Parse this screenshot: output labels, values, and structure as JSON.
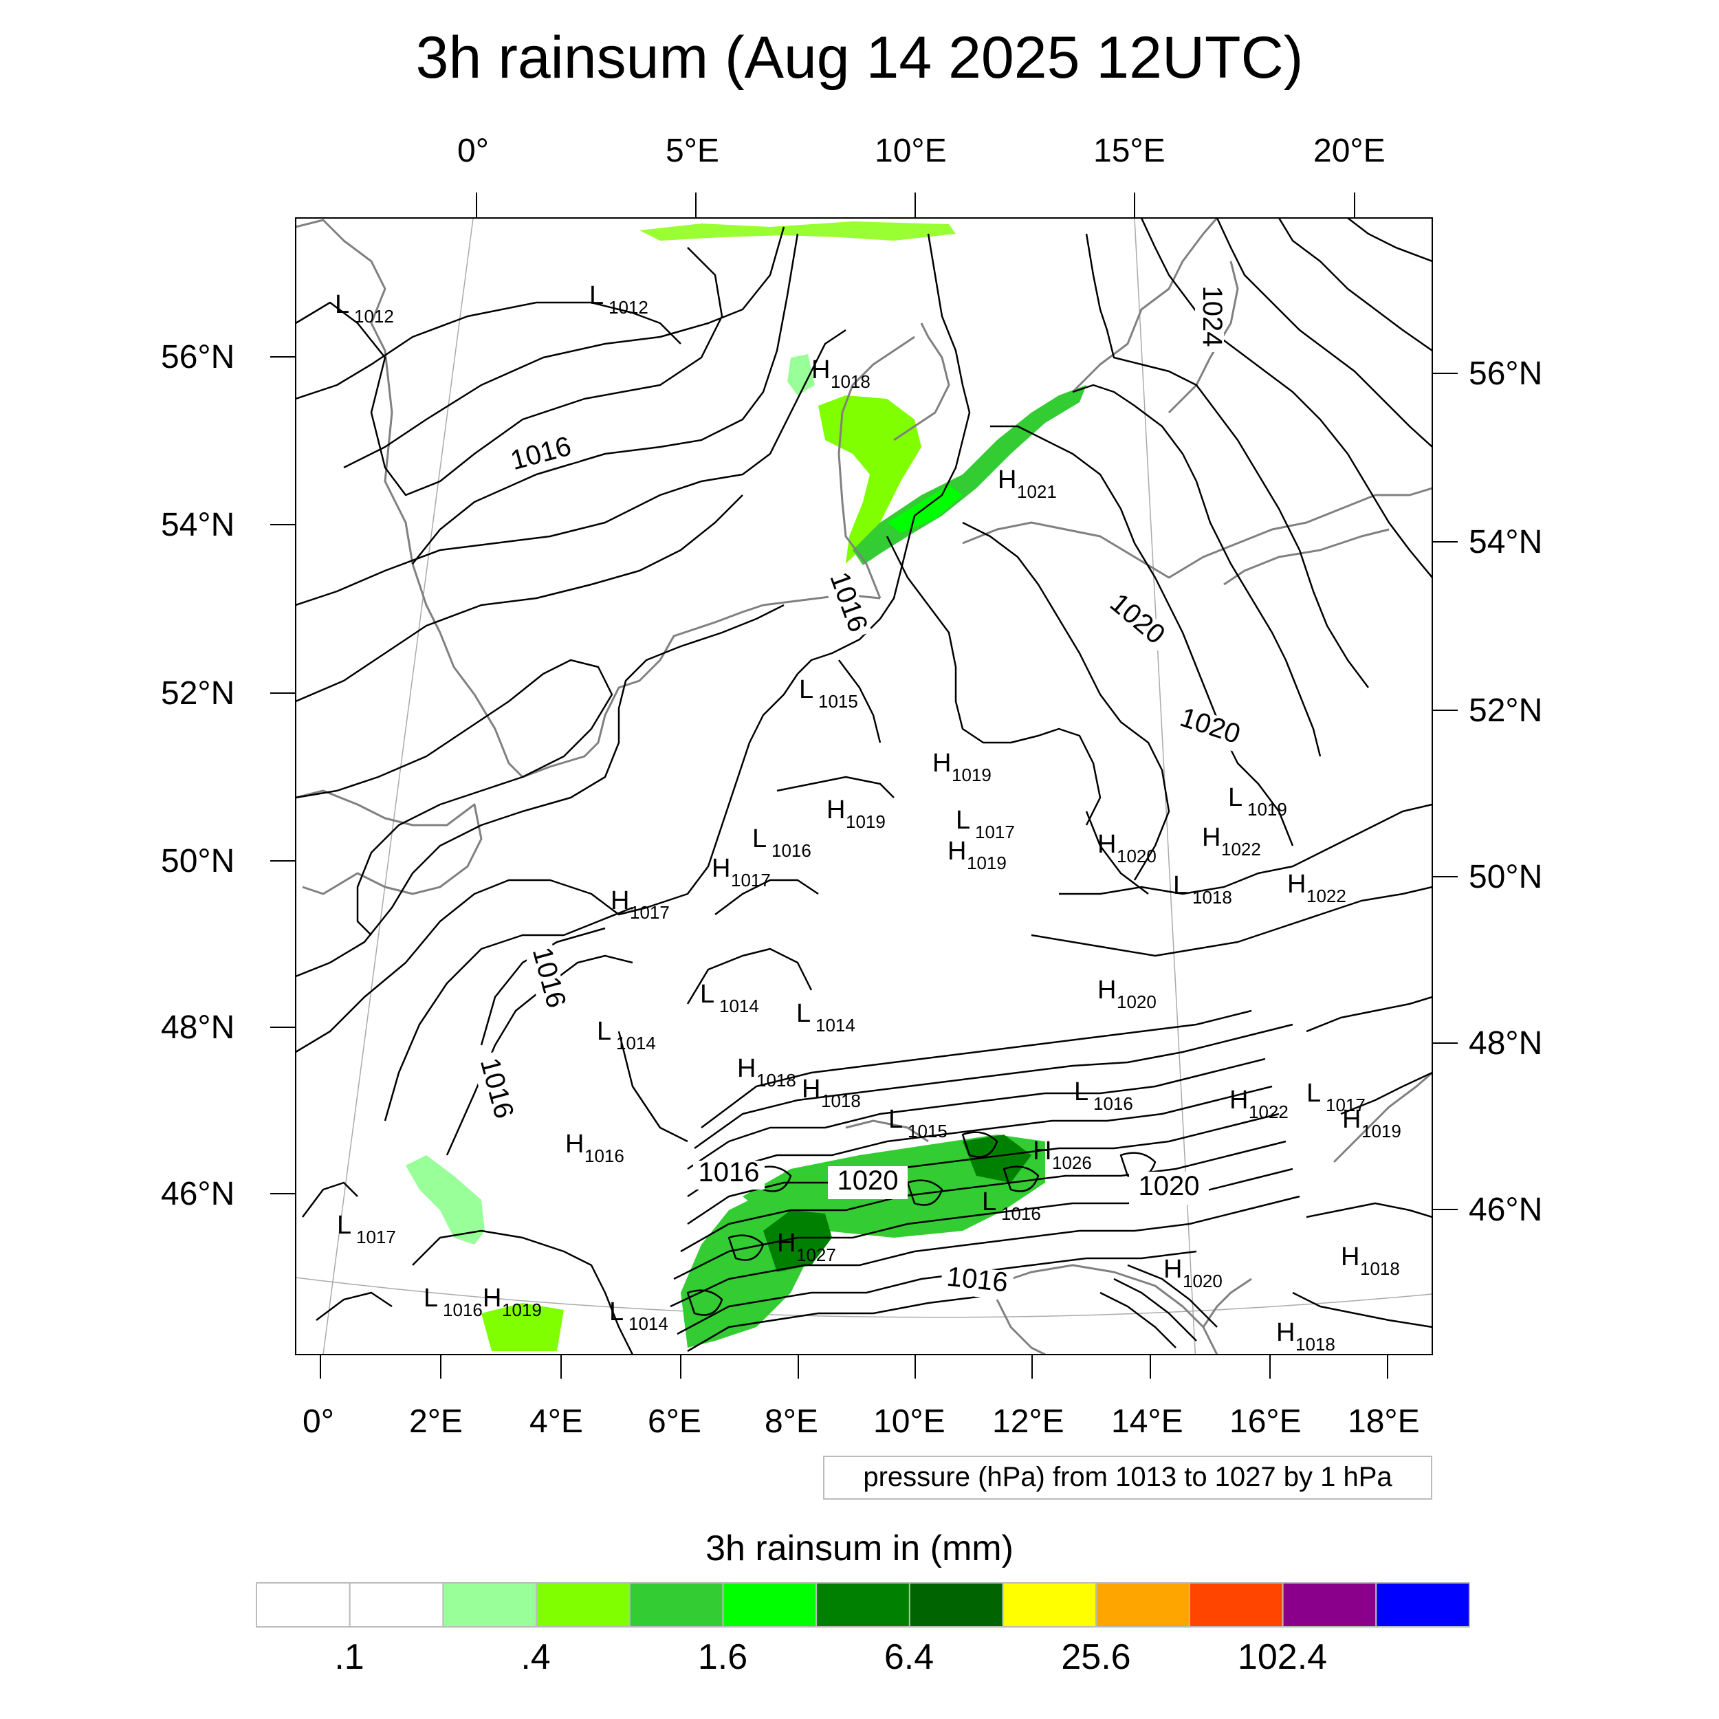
{
  "title": "3h rainsum (Aug 14 2025 12UTC)",
  "top_lon_labels": [
    "0°",
    "5°E",
    "10°E",
    "15°E",
    "20°E"
  ],
  "bottom_lon_labels": [
    "0°",
    "2°E",
    "4°E",
    "6°E",
    "8°E",
    "10°E",
    "12°E",
    "14°E",
    "16°E",
    "18°E"
  ],
  "left_lat_labels": [
    "56°N",
    "54°N",
    "52°N",
    "50°N",
    "48°N",
    "46°N"
  ],
  "right_lat_labels": [
    "56°N",
    "54°N",
    "52°N",
    "50°N",
    "48°N",
    "46°N"
  ],
  "pressure_note": "pressure (hPa) from 1013 to 1027 by 1 hPa",
  "colorbar": {
    "title": "3h rainsum in (mm)",
    "colors": [
      "#ffffff",
      "#ffffff",
      "#99ff99",
      "#80ff00",
      "#33cc33",
      "#00ff00",
      "#008000",
      "#006400",
      "#ffff00",
      "#ffa500",
      "#ff4500",
      "#8b008b",
      "#0000ff"
    ],
    "tick_labels": [
      ".1",
      ".4",
      "1.6",
      "6.4",
      "25.6",
      "102.4"
    ]
  },
  "contour_labels": [
    "1016",
    "1016",
    "1016",
    "1016",
    "1016",
    "1016",
    "1020",
    "1020",
    "1020",
    "1020",
    "1024"
  ],
  "pressure_centers": [
    {
      "type": "L",
      "value": "1012"
    },
    {
      "type": "L",
      "value": "1012"
    },
    {
      "type": "H",
      "value": "1018"
    },
    {
      "type": "H",
      "value": "1021"
    },
    {
      "type": "L",
      "value": "1015"
    },
    {
      "type": "H",
      "value": "1019"
    },
    {
      "type": "H",
      "value": "1019"
    },
    {
      "type": "L",
      "value": "1017"
    },
    {
      "type": "L",
      "value": "1016"
    },
    {
      "type": "H",
      "value": "1017"
    },
    {
      "type": "H",
      "value": "1019"
    },
    {
      "type": "H",
      "value": "1020"
    },
    {
      "type": "L",
      "value": "1019"
    },
    {
      "type": "H",
      "value": "1022"
    },
    {
      "type": "L",
      "value": "1018"
    },
    {
      "type": "H",
      "value": "1022"
    },
    {
      "type": "H",
      "value": "1017"
    },
    {
      "type": "L",
      "value": "1014"
    },
    {
      "type": "L",
      "value": "1014"
    },
    {
      "type": "L",
      "value": "1014"
    },
    {
      "type": "H",
      "value": "1020"
    },
    {
      "type": "H",
      "value": "1018"
    },
    {
      "type": "H",
      "value": "1018"
    },
    {
      "type": "L",
      "value": "1015"
    },
    {
      "type": "H",
      "value": "1016"
    },
    {
      "type": "H",
      "value": "1026"
    },
    {
      "type": "L",
      "value": "1016"
    },
    {
      "type": "H",
      "value": "1022"
    },
    {
      "type": "L",
      "value": "1017"
    },
    {
      "type": "H",
      "value": "1019"
    },
    {
      "type": "L",
      "value": "1017"
    },
    {
      "type": "H",
      "value": "1027"
    },
    {
      "type": "L",
      "value": "1016"
    },
    {
      "type": "H",
      "value": "1019"
    },
    {
      "type": "L",
      "value": "1014"
    },
    {
      "type": "H",
      "value": "1020"
    },
    {
      "type": "H",
      "value": "1018"
    },
    {
      "type": "H",
      "value": "1018"
    },
    {
      "type": "L",
      "value": "1016"
    }
  ]
}
